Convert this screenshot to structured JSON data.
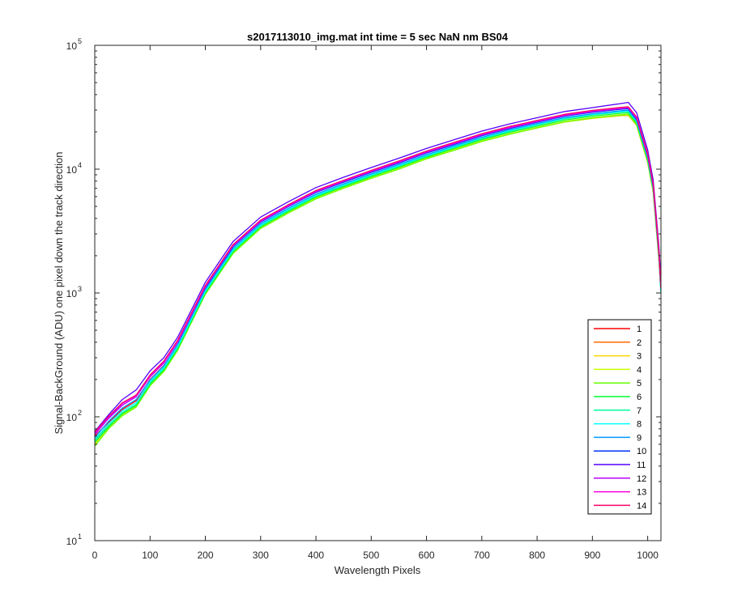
{
  "chart_data": {
    "type": "line",
    "title": "s2017113010_img.mat int time = 5 sec  NaN nm BS04",
    "xlabel": "Wavelength Pixels",
    "ylabel": "Signal-BackGround (ADU) one pixel down the track direction",
    "xlim": [
      0,
      1024
    ],
    "ylim": [
      10,
      100000
    ],
    "yscale": "log",
    "grid": false,
    "legend_position": "bottom-right",
    "x_ticks": [
      0,
      100,
      200,
      300,
      400,
      500,
      600,
      700,
      800,
      900,
      1000
    ],
    "y_ticks": [
      {
        "value": 10,
        "base": "10",
        "exp": "1"
      },
      {
        "value": 100,
        "base": "10",
        "exp": "2"
      },
      {
        "value": 1000,
        "base": "10",
        "exp": "3"
      },
      {
        "value": 10000,
        "base": "10",
        "exp": "4"
      },
      {
        "value": 100000,
        "base": "10",
        "exp": "5"
      }
    ],
    "x": [
      0,
      25,
      50,
      75,
      100,
      125,
      150,
      200,
      250,
      300,
      350,
      400,
      450,
      500,
      550,
      600,
      650,
      700,
      750,
      800,
      850,
      900,
      950,
      965,
      980,
      1000,
      1010,
      1020,
      1024
    ],
    "series": [
      {
        "name": "1",
        "color": "#ff0000",
        "values": [
          70,
          90,
          115,
          135,
          200,
          260,
          380,
          1100,
          2400,
          3800,
          5100,
          6700,
          8100,
          9700,
          11500,
          13900,
          16300,
          19200,
          22000,
          24600,
          27500,
          29500,
          31000,
          31500,
          26000,
          13000,
          7500,
          2200,
          1100
        ]
      },
      {
        "name": "2",
        "color": "#ff6a00",
        "values": [
          65,
          85,
          108,
          125,
          185,
          240,
          350,
          1000,
          2150,
          3400,
          4550,
          5900,
          7150,
          8600,
          10200,
          12300,
          14400,
          16900,
          19300,
          21600,
          24100,
          25800,
          27000,
          27200,
          22500,
          11300,
          6500,
          1900,
          1000
        ]
      },
      {
        "name": "3",
        "color": "#ffd700",
        "values": [
          60,
          82,
          104,
          122,
          180,
          235,
          345,
          980,
          2100,
          3350,
          4450,
          5800,
          7050,
          8500,
          10100,
          12200,
          14300,
          16800,
          19200,
          21500,
          24000,
          25700,
          27000,
          27300,
          22600,
          11400,
          6600,
          1950,
          1000
        ]
      },
      {
        "name": "4",
        "color": "#c8ff00",
        "values": [
          62,
          82,
          104,
          122,
          182,
          238,
          350,
          990,
          2120,
          3380,
          4500,
          5850,
          7100,
          8550,
          10150,
          12250,
          14400,
          16900,
          19300,
          21700,
          24300,
          26100,
          27500,
          27800,
          23000,
          11600,
          6700,
          1980,
          1000
        ]
      },
      {
        "name": "5",
        "color": "#66ff00",
        "values": [
          58,
          80,
          102,
          120,
          178,
          232,
          345,
          975,
          2080,
          3320,
          4420,
          5750,
          7000,
          8420,
          10000,
          12100,
          14200,
          16700,
          19100,
          21500,
          24100,
          25900,
          27300,
          27600,
          22800,
          11500,
          6650,
          1960,
          1000
        ]
      },
      {
        "name": "6",
        "color": "#00ff33",
        "values": [
          62,
          83,
          106,
          124,
          184,
          240,
          355,
          1000,
          2150,
          3420,
          4560,
          5950,
          7220,
          8700,
          10350,
          12500,
          14700,
          17300,
          19800,
          22200,
          24900,
          26800,
          28200,
          28500,
          23600,
          11900,
          6850,
          2030,
          1000
        ]
      },
      {
        "name": "7",
        "color": "#00ff99",
        "values": [
          64,
          85,
          108,
          126,
          188,
          245,
          362,
          1020,
          2190,
          3480,
          4640,
          6050,
          7350,
          8860,
          10550,
          12700,
          14950,
          17600,
          20200,
          22700,
          25500,
          27400,
          28900,
          29200,
          24100,
          12200,
          7000,
          2070,
          1000
        ]
      },
      {
        "name": "8",
        "color": "#00ffff",
        "values": [
          66,
          88,
          112,
          130,
          192,
          250,
          372,
          1040,
          2230,
          3540,
          4720,
          6150,
          7480,
          9000,
          10700,
          12900,
          15200,
          17900,
          20500,
          23000,
          25800,
          27700,
          29200,
          29500,
          24400,
          12300,
          7050,
          2090,
          1000
        ]
      },
      {
        "name": "9",
        "color": "#0099ff",
        "values": [
          68,
          92,
          118,
          138,
          198,
          258,
          385,
          1070,
          2290,
          3620,
          4830,
          6280,
          7620,
          9150,
          10900,
          13100,
          15400,
          18100,
          20800,
          23300,
          26100,
          28000,
          29600,
          29900,
          24700,
          12500,
          7150,
          2120,
          1050
        ]
      },
      {
        "name": "10",
        "color": "#0033ff",
        "values": [
          72,
          98,
          128,
          150,
          212,
          275,
          405,
          1110,
          2370,
          3740,
          4980,
          6480,
          7850,
          9420,
          11200,
          13500,
          15800,
          18600,
          21300,
          23900,
          26800,
          28800,
          30400,
          30800,
          25400,
          12800,
          7350,
          2180,
          1100
        ]
      },
      {
        "name": "11",
        "color": "#5500ff",
        "values": [
          76,
          104,
          138,
          165,
          235,
          300,
          440,
          1220,
          2600,
          4100,
          5450,
          7100,
          8600,
          10300,
          12250,
          14700,
          17300,
          20300,
          23200,
          26000,
          29200,
          31400,
          33800,
          34600,
          28500,
          14300,
          8200,
          2450,
          1300
        ]
      },
      {
        "name": "12",
        "color": "#bb00ff",
        "values": [
          72,
          97,
          124,
          145,
          210,
          272,
          400,
          1120,
          2400,
          3780,
          5030,
          6550,
          7950,
          9550,
          11350,
          13650,
          16050,
          18850,
          21550,
          24150,
          27100,
          29100,
          30800,
          31200,
          25700,
          12950,
          7450,
          2200,
          1100
        ]
      },
      {
        "name": "13",
        "color": "#ff00dd",
        "values": [
          74,
          100,
          128,
          148,
          215,
          278,
          410,
          1140,
          2440,
          3850,
          5120,
          6670,
          8080,
          9700,
          11550,
          13900,
          16300,
          19150,
          21900,
          24550,
          27550,
          29600,
          31300,
          31700,
          26100,
          13150,
          7550,
          2230,
          1100
        ]
      },
      {
        "name": "14",
        "color": "#ff0066",
        "values": [
          75,
          101,
          130,
          150,
          218,
          282,
          415,
          1150,
          2460,
          3880,
          5160,
          6720,
          8140,
          9780,
          11650,
          14000,
          16450,
          19300,
          22100,
          24750,
          27750,
          29800,
          31500,
          31900,
          26300,
          13250,
          7600,
          2250,
          1100
        ]
      }
    ]
  }
}
